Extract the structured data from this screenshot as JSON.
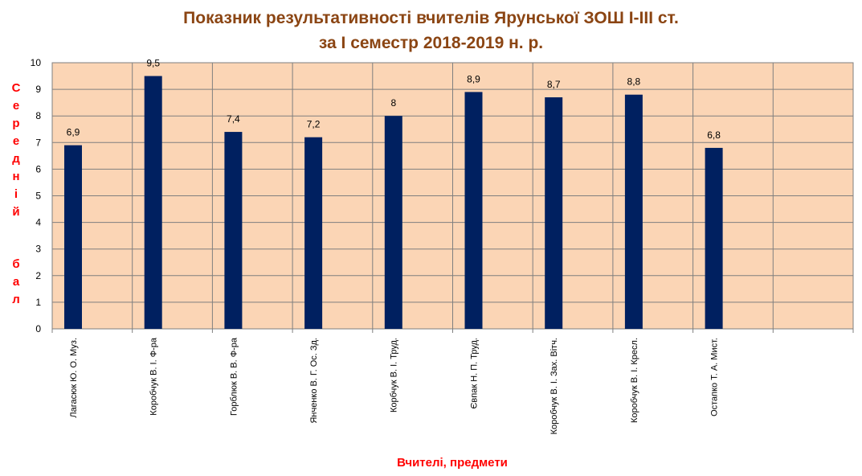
{
  "chart_data": {
    "type": "bar",
    "title_lines": [
      "Показник результативності вчителів Ярунської ЗОШ І-ІІІ ст.",
      "за І семестр 2018-2019 н. р."
    ],
    "ylabel_word1": [
      "С",
      "е",
      "р",
      "е",
      "д",
      "н",
      "і",
      "й"
    ],
    "ylabel_word2": [
      "б",
      "а",
      "л"
    ],
    "xlabel": "Вчителі, предмети",
    "ylim": [
      0,
      10
    ],
    "yticks": [
      "0",
      "1",
      "2",
      "3",
      "4",
      "5",
      "6",
      "7",
      "8",
      "9",
      "10"
    ],
    "categories": [
      "Лагасюк Ю. О. Муз.",
      "Коробчук В. І. Ф-ра",
      "Горблюк В. В. Ф-ра",
      "Янченко В. Г. Ос. Зд.",
      "Корбчук В. І. Труд.",
      "Євпак Н. П. Труд.",
      "Коробчук В. І. Зах. Вітч.",
      "Коробчук В. І. Кресл.",
      "Остапко Т. А. Мист.",
      ""
    ],
    "values": [
      6.9,
      9.5,
      7.4,
      7.2,
      8,
      8.9,
      8.7,
      8.8,
      6.8,
      null
    ],
    "value_labels": [
      "6,9",
      "9,5",
      "7,4",
      "7,2",
      "8",
      "8,9",
      "8,7",
      "8,8",
      "6,8",
      ""
    ],
    "grid": true,
    "colors": {
      "bar": "#002060",
      "plot_bg": "#FBD5B5",
      "grid": "#7F7F7F",
      "title": "#8B4513",
      "axis_title": "#FF0000"
    }
  }
}
